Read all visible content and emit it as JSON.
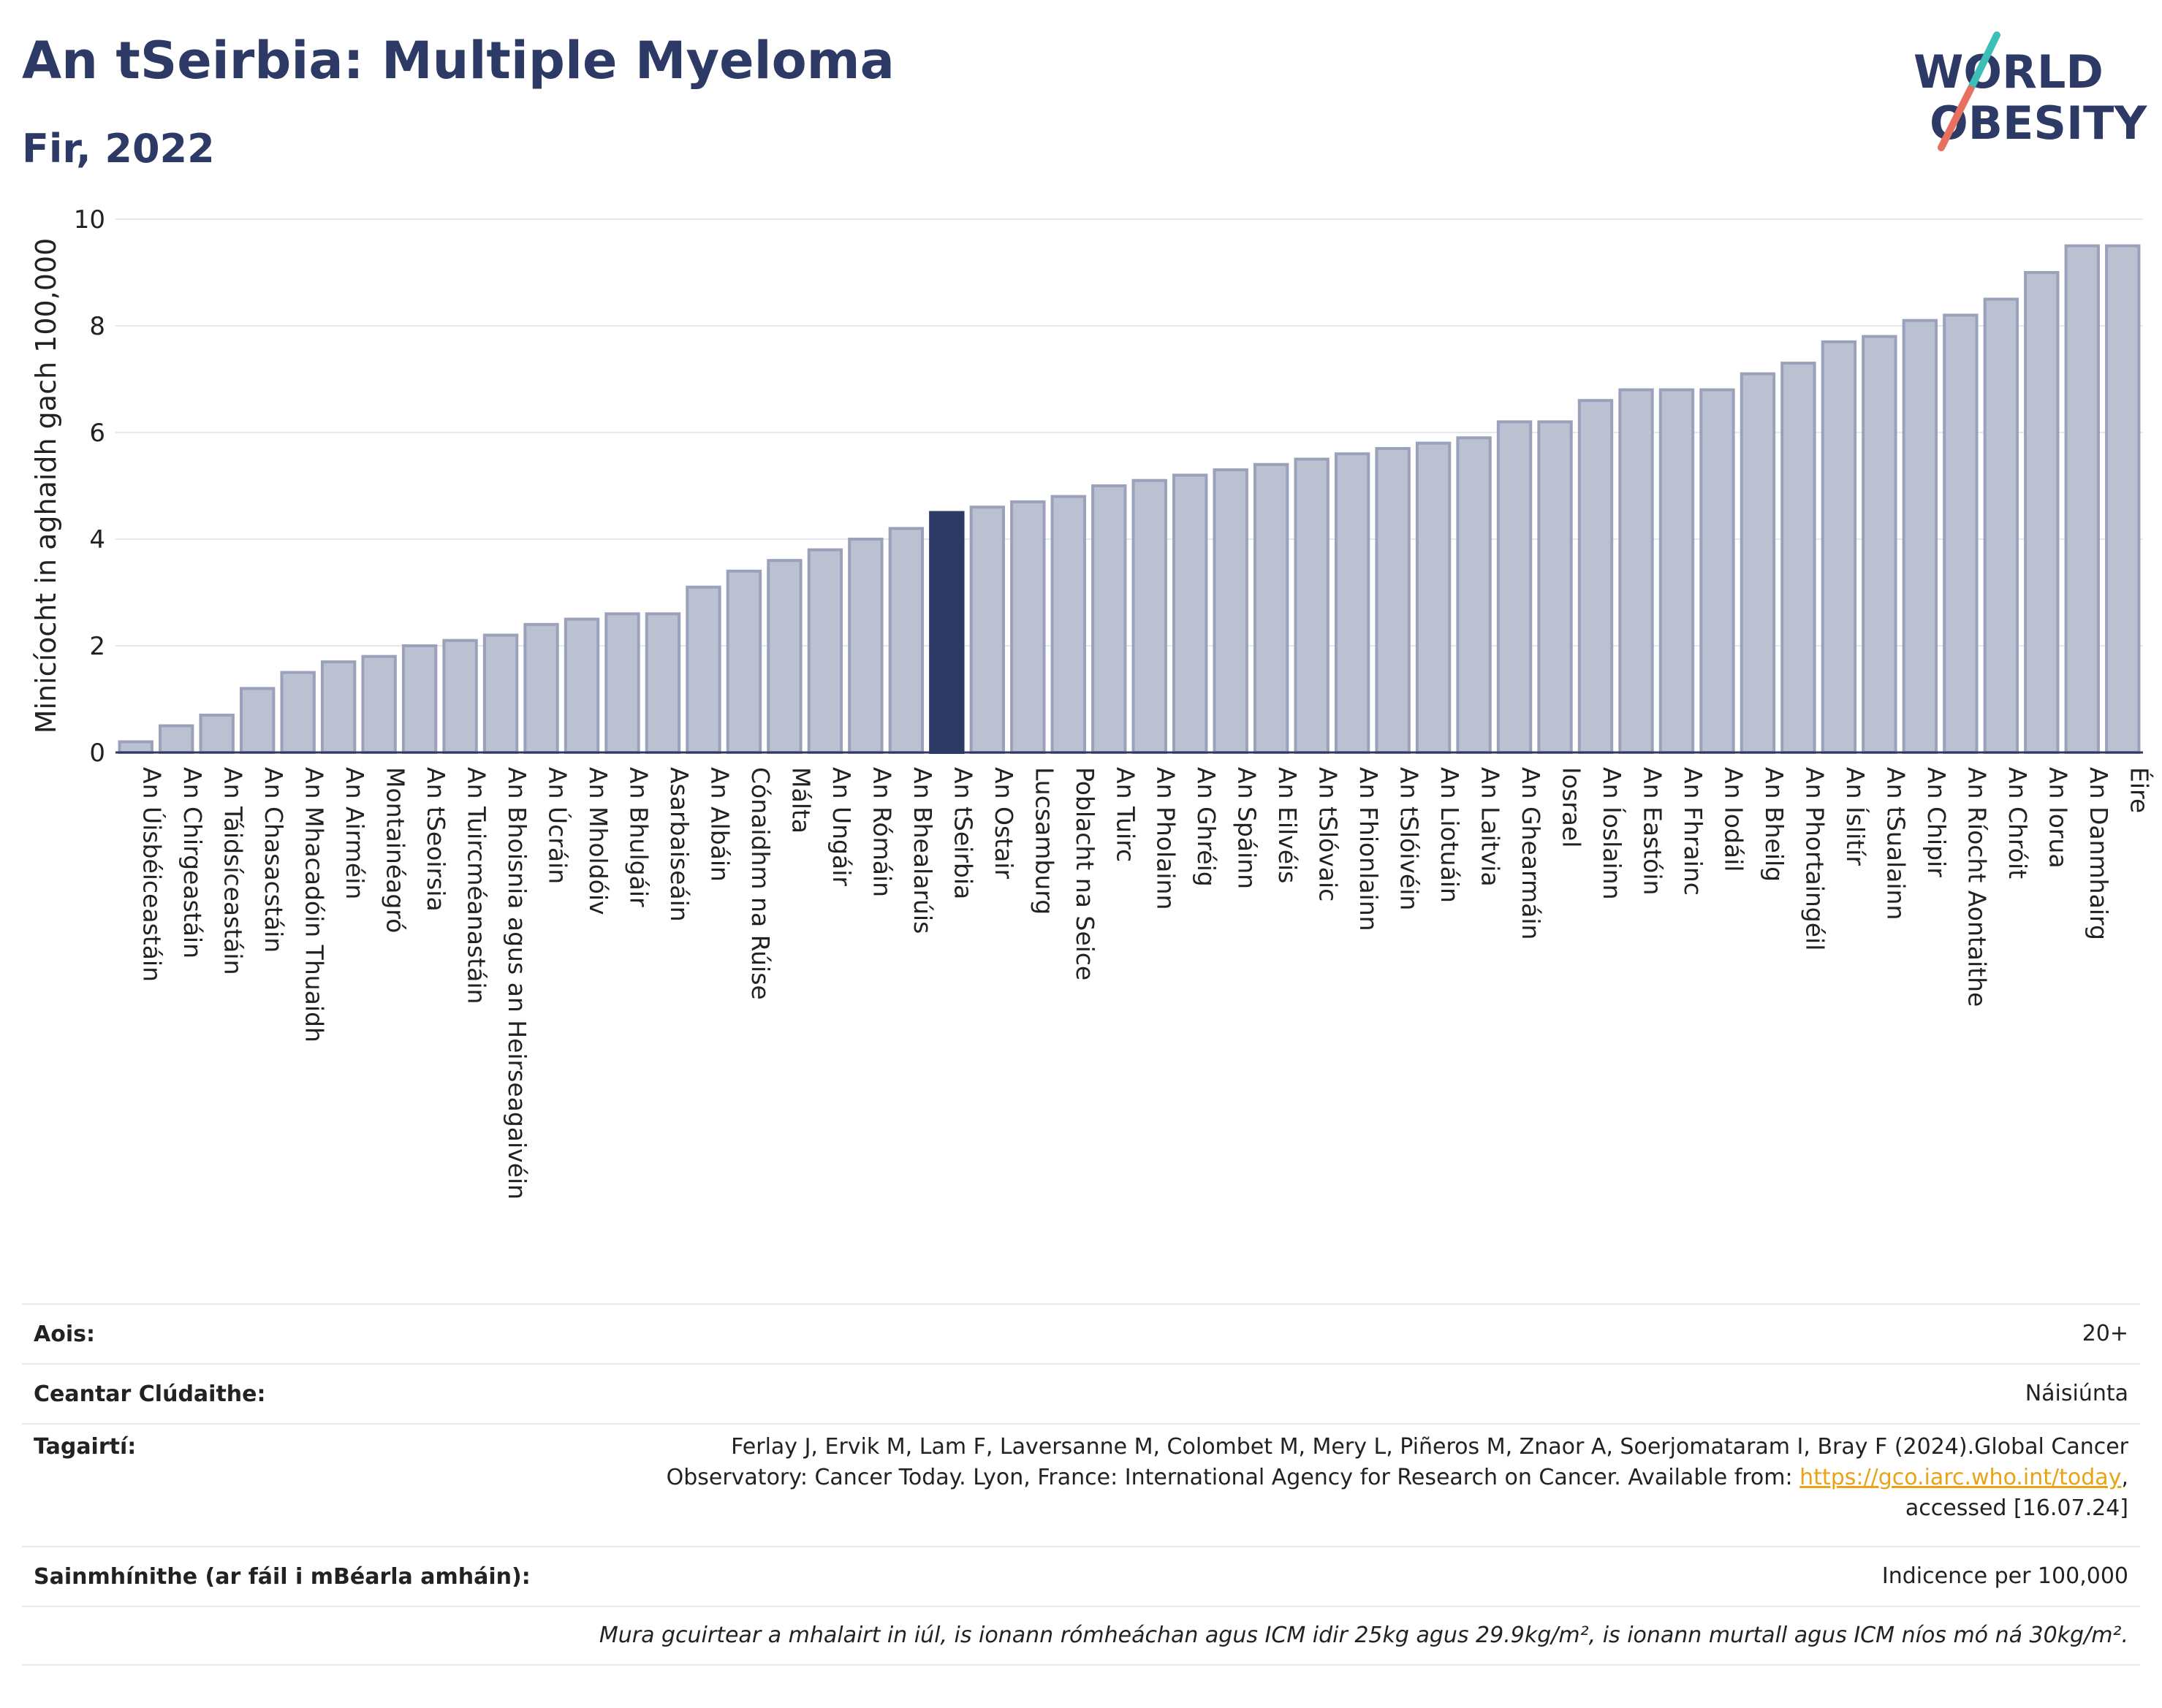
{
  "header": {
    "title": "An tSeirbia: Multiple Myeloma",
    "subtitle": "Fir, 2022"
  },
  "logo": {
    "line1": "WORLD",
    "line2": "OBESITY",
    "colors": {
      "text": "#2d3a66",
      "slash_top": "#3dbfb8",
      "slash_bottom": "#e8705f"
    }
  },
  "chart_data": {
    "type": "bar",
    "ylabel": "Minicíocht in aghaidh gach 100,000",
    "xlabel": "",
    "ylim": [
      0,
      10
    ],
    "yticks": [
      0,
      2,
      4,
      6,
      8,
      10
    ],
    "grid": true,
    "highlight": "An tSeirbia",
    "colors": {
      "bar": "#bcc1d1",
      "bar_edge": "#9aa1ba",
      "highlight": "#2d3a66",
      "axis": "#2d3a66"
    },
    "categories": [
      "An Úisbéiceastáin",
      "An Chirgeastáin",
      "An Táidsíceastáin",
      "An Chasacstáin",
      "An Mhacadóin Thuaidh",
      "An Airméin",
      "Montainéagró",
      "An tSeoirsia",
      "An Tuircméanastáin",
      "An Bhoisnia agus an Heirseagaivéin",
      "An Úcráin",
      "An Mholdóiv",
      "An Bhulgáir",
      "Asarbaiseáin",
      "An Albáin",
      "Cónaidhm na Rúise",
      "Málta",
      "An Ungáir",
      "An Rómáin",
      "An Bhealarúis",
      "An tSeirbia",
      "An Ostair",
      "Lucsamburg",
      "Poblacht na Seice",
      "An Tuirc",
      "An Pholainn",
      "An Ghréig",
      "An Spáinn",
      "An Eilvéis",
      "An tSlóvaic",
      "An Fhionlainn",
      "An tSlóivéin",
      "An Liotuáin",
      "An Laitvia",
      "An Ghearmáin",
      "Iosrael",
      "An Íoslainn",
      "An Eastóin",
      "An Fhrainc",
      "An Iodáil",
      "An Bheilg",
      "An Phortaingéil",
      "An Íslitír",
      "An tSualainn",
      "An Chipir",
      "An Ríocht Aontaithe",
      "An Chróit",
      "An Iorua",
      "An Danmhairg",
      "Éire"
    ],
    "values": [
      0.2,
      0.5,
      0.7,
      1.2,
      1.5,
      1.7,
      1.8,
      2.0,
      2.1,
      2.2,
      2.4,
      2.5,
      2.6,
      2.6,
      3.1,
      3.4,
      3.6,
      3.8,
      4.0,
      4.2,
      4.5,
      4.6,
      4.7,
      4.8,
      5.0,
      5.1,
      5.2,
      5.3,
      5.4,
      5.5,
      5.6,
      5.7,
      5.8,
      5.9,
      6.2,
      6.2,
      6.6,
      6.8,
      6.8,
      6.8,
      7.1,
      7.3,
      7.7,
      7.8,
      8.1,
      8.2,
      8.5,
      9.0,
      9.5,
      9.5
    ]
  },
  "info": {
    "age_label": "Aois:",
    "age_value": "20+",
    "area_label": "Ceantar Clúdaithe:",
    "area_value": "Náisiúnta",
    "refs_label": "Tagairtí:",
    "refs_line1": "Ferlay J, Ervik M, Lam F, Laversanne M, Colombet M, Mery L, Piñeros M, Znaor A, Soerjomataram I, Bray F (2024).Global Cancer",
    "refs_line2": "Observatory: Cancer Today. Lyon, France: International Agency for Research on Cancer. Available from: ",
    "refs_link": "https://gco.iarc.who.int/today",
    "refs_line2_end": ",",
    "refs_line3": "accessed [16.07.24]",
    "def_label": "Sainmhínithe (ar fáil i mBéarla amháin):",
    "def_value": "Indicence per 100,000",
    "note": "Mura gcuirtear a mhalairt in iúl, is ionann rómheáchan agus ICM idir 25kg agus 29.9kg/m², is ionann murtall agus ICM níos mó ná 30kg/m²."
  }
}
